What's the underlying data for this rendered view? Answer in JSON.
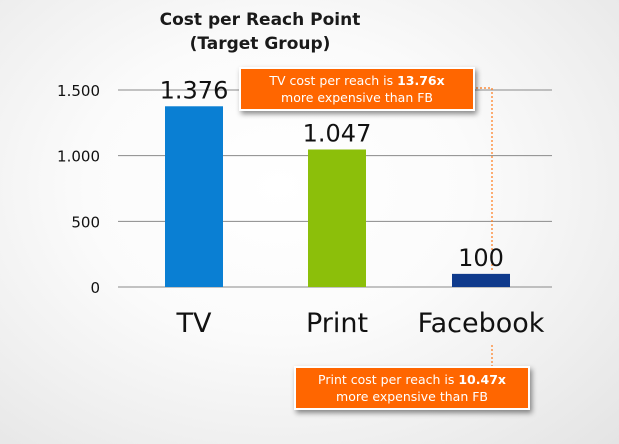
{
  "chart_data": {
    "type": "bar",
    "title_lines": [
      "Cost per Reach Point",
      "(Target Group)"
    ],
    "categories": [
      "TV",
      "Print",
      "Facebook"
    ],
    "values": [
      1376,
      1047,
      100
    ],
    "value_labels": [
      "1.376",
      "1.047",
      "100"
    ],
    "colors": [
      "#0a7fd3",
      "#8cbf0a",
      "#0f3a8c"
    ],
    "ylim": [
      0,
      1500
    ],
    "yticks": [
      0,
      500,
      1000,
      1500
    ],
    "ytick_labels": [
      "0",
      "500",
      "1.000",
      "1.500"
    ],
    "grid": true,
    "annotations": [
      {
        "id": "tv",
        "prefix": "TV cost per reach is ",
        "highlight": "13.76x",
        "suffix": "more expensive than FB"
      },
      {
        "id": "print",
        "prefix": "Print cost per reach is ",
        "highlight": "10.47x",
        "suffix": "more expensive than FB"
      }
    ]
  }
}
